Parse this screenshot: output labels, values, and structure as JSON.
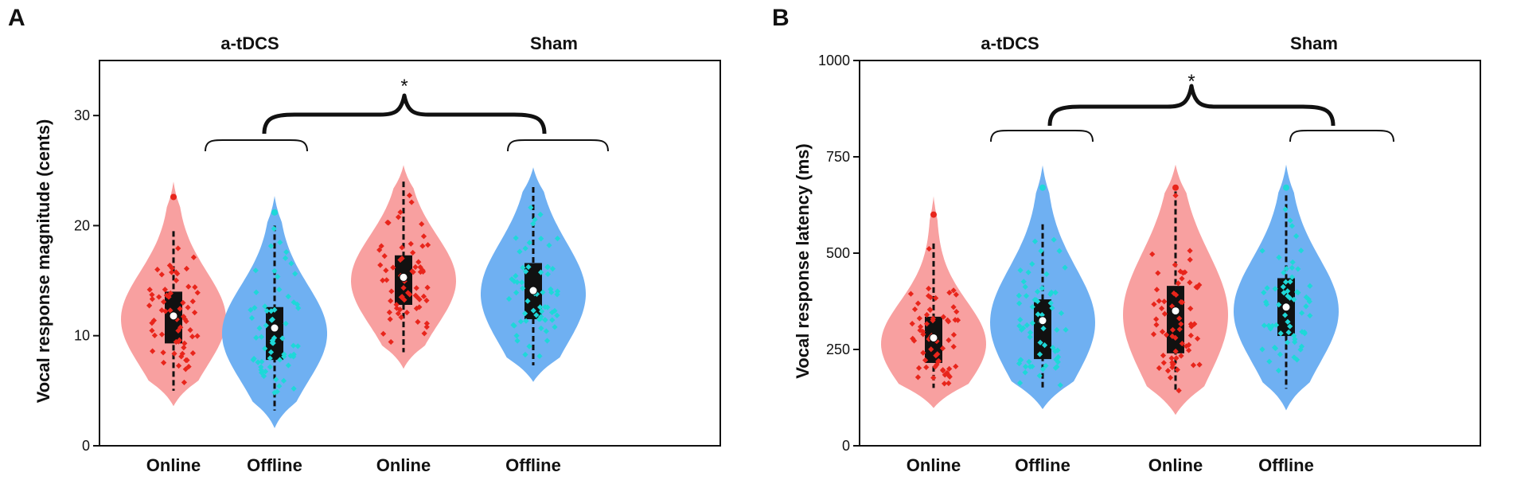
{
  "chart_data": [
    {
      "panel": "A",
      "type": "violin",
      "group_labels": [
        "a-tDCS",
        "Sham"
      ],
      "categories": [
        "Online",
        "Offline",
        "Online",
        "Offline"
      ],
      "ylabel": "Vocal response magnitude (cents)",
      "ylim": [
        0,
        35
      ],
      "yticks": [
        0,
        10,
        20,
        30
      ],
      "significance": "*",
      "series": [
        {
          "group": "a-tDCS",
          "condition": "Online",
          "color": "#f8a0a0",
          "dot_color": "#e8251b",
          "min": 5,
          "q1": 9.3,
          "median": 11.5,
          "q3": 14.0,
          "max": 19.5,
          "mean": 11.8,
          "violin_lo": 3.6,
          "violin_hi": 24.0,
          "outliers": [
            22.6
          ]
        },
        {
          "group": "a-tDCS",
          "condition": "Offline",
          "color": "#6fb0f2",
          "dot_color": "#1ed8d8",
          "min": 3.2,
          "q1": 7.8,
          "median": 10.2,
          "q3": 12.6,
          "max": 20.0,
          "mean": 10.7,
          "violin_lo": 1.6,
          "violin_hi": 22.7,
          "outliers": [
            21.2
          ]
        },
        {
          "group": "Sham",
          "condition": "Online",
          "color": "#f8a0a0",
          "dot_color": "#e8251b",
          "min": 8.5,
          "q1": 12.8,
          "median": 15.0,
          "q3": 17.3,
          "max": 24.0,
          "mean": 15.3,
          "violin_lo": 7.0,
          "violin_hi": 25.5,
          "outliers": []
        },
        {
          "group": "Sham",
          "condition": "Offline",
          "color": "#6fb0f2",
          "dot_color": "#1ed8d8",
          "min": 7.3,
          "q1": 11.5,
          "median": 13.8,
          "q3": 16.6,
          "max": 23.5,
          "mean": 14.1,
          "violin_lo": 5.8,
          "violin_hi": 25.3,
          "outliers": []
        }
      ]
    },
    {
      "panel": "B",
      "type": "violin",
      "group_labels": [
        "a-tDCS",
        "Sham"
      ],
      "categories": [
        "Online",
        "Offline",
        "Online",
        "Offline"
      ],
      "ylabel": "Vocal response latency (ms)",
      "ylim": [
        0,
        1000
      ],
      "yticks": [
        0,
        250,
        500,
        750,
        1000
      ],
      "significance": "*",
      "series": [
        {
          "group": "a-tDCS",
          "condition": "Online",
          "color": "#f8a0a0",
          "dot_color": "#e8251b",
          "min": 150,
          "q1": 215,
          "median": 265,
          "q3": 335,
          "max": 525,
          "mean": 280,
          "violin_lo": 98,
          "violin_hi": 648,
          "outliers": [
            600
          ]
        },
        {
          "group": "a-tDCS",
          "condition": "Offline",
          "color": "#6fb0f2",
          "dot_color": "#1ed8d8",
          "min": 145,
          "q1": 225,
          "median": 320,
          "q3": 380,
          "max": 575,
          "mean": 325,
          "violin_lo": 95,
          "violin_hi": 728,
          "outliers": [
            670
          ]
        },
        {
          "group": "Sham",
          "condition": "Online",
          "color": "#f8a0a0",
          "dot_color": "#e8251b",
          "min": 140,
          "q1": 240,
          "median": 340,
          "q3": 415,
          "max": 660,
          "mean": 350,
          "violin_lo": 80,
          "violin_hi": 730,
          "outliers": [
            670
          ]
        },
        {
          "group": "Sham",
          "condition": "Offline",
          "color": "#6fb0f2",
          "dot_color": "#1ed8d8",
          "min": 148,
          "q1": 285,
          "median": 350,
          "q3": 435,
          "max": 650,
          "mean": 360,
          "violin_lo": 92,
          "violin_hi": 730,
          "outliers": [
            670
          ]
        }
      ]
    }
  ]
}
